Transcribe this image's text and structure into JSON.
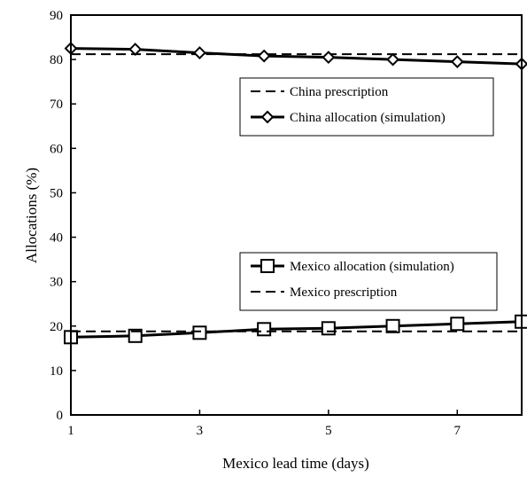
{
  "chart_data": {
    "type": "line",
    "title": "",
    "xlabel": "Mexico lead time (days)",
    "ylabel": "Allocations (%)",
    "xlim": [
      1,
      8
    ],
    "ylim": [
      0,
      90
    ],
    "x_ticks": [
      1,
      3,
      5,
      7
    ],
    "y_ticks": [
      0,
      10,
      20,
      30,
      40,
      50,
      60,
      70,
      80,
      90
    ],
    "grid": false,
    "x": [
      1,
      2,
      3,
      4,
      5,
      6,
      7,
      8
    ],
    "series": [
      {
        "name": "China prescription",
        "style": "dashed",
        "marker": "none",
        "color": "#000000",
        "values": [
          81.2,
          81.2,
          81.2,
          81.2,
          81.2,
          81.2,
          81.2,
          81.2
        ]
      },
      {
        "name": "China allocation (simulation)",
        "style": "solid",
        "marker": "diamond",
        "color": "#000000",
        "values": [
          82.5,
          82.3,
          81.5,
          80.8,
          80.5,
          80.0,
          79.5,
          79.0
        ]
      },
      {
        "name": "Mexico allocation (simulation)",
        "style": "solid",
        "marker": "square",
        "color": "#000000",
        "values": [
          17.5,
          17.8,
          18.5,
          19.3,
          19.5,
          20.0,
          20.5,
          21.0
        ]
      },
      {
        "name": "Mexico prescription",
        "style": "dashed",
        "marker": "none",
        "color": "#000000",
        "values": [
          18.8,
          18.8,
          18.8,
          18.8,
          18.8,
          18.8,
          18.8,
          18.8
        ]
      }
    ],
    "legends": [
      {
        "placement": "upper-right",
        "entries": [
          "China prescription",
          "China allocation (simulation)"
        ]
      },
      {
        "placement": "lower-right",
        "entries": [
          "Mexico allocation (simulation)",
          "Mexico prescription"
        ]
      }
    ]
  }
}
